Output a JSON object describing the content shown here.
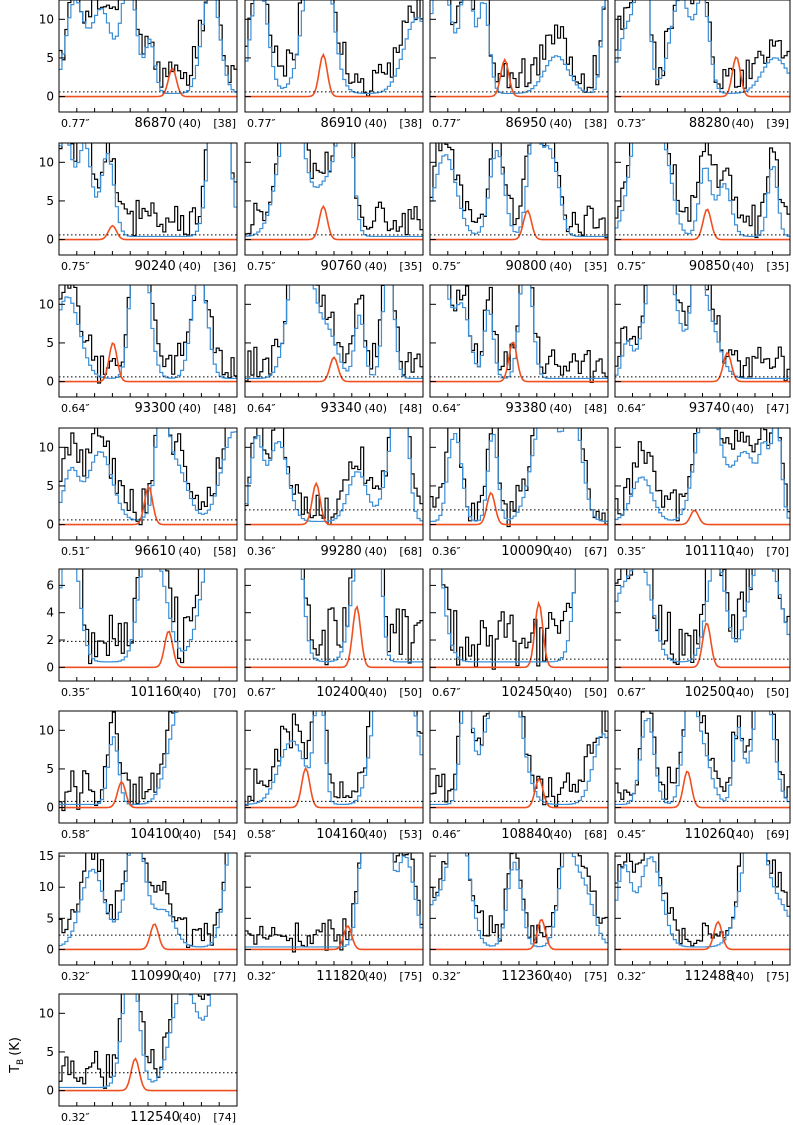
{
  "figure": {
    "ylabel": "T_B (K)",
    "ylabel_main": "T",
    "ylabel_sub": "B",
    "ylabel_unit": "(K)"
  },
  "colors": {
    "observed": "#000000",
    "model_total": "#3a8fd8",
    "model_species": "#f05020",
    "threshold": "#000000"
  },
  "chart_data": {
    "type": "line",
    "description_of_series": [
      "observed spectrum",
      "model (all species)",
      "model (this species)",
      "3-sigma level"
    ],
    "panels": [
      {
        "label": "86870",
        "beam": "0.77″",
        "n": "(40)",
        "idx": "[38]",
        "ylim": [
          -2,
          12.5
        ],
        "yticks": [
          0,
          5,
          10
        ],
        "thr": 0.6
      },
      {
        "label": "86910",
        "beam": "0.77″",
        "n": "(40)",
        "idx": "[38]",
        "ylim": [
          -2,
          12.5
        ],
        "yticks": [
          0,
          5,
          10
        ],
        "thr": 0.6
      },
      {
        "label": "86950",
        "beam": "0.77″",
        "n": "(40)",
        "idx": "[38]",
        "ylim": [
          -2,
          12.5
        ],
        "yticks": [
          0,
          5,
          10
        ],
        "thr": 0.6
      },
      {
        "label": "88280",
        "beam": "0.73″",
        "n": "(40)",
        "idx": "[39]",
        "ylim": [
          -2,
          12.5
        ],
        "yticks": [
          0,
          5,
          10
        ],
        "thr": 0.6
      },
      {
        "label": "90240",
        "beam": "0.75″",
        "n": "(40)",
        "idx": "[36]",
        "ylim": [
          -2,
          12.5
        ],
        "yticks": [
          0,
          5,
          10
        ],
        "thr": 0.6
      },
      {
        "label": "90760",
        "beam": "0.75″",
        "n": "(40)",
        "idx": "[35]",
        "ylim": [
          -2,
          12.5
        ],
        "yticks": [
          0,
          5,
          10
        ],
        "thr": 0.6
      },
      {
        "label": "90800",
        "beam": "0.75″",
        "n": "(40)",
        "idx": "[35]",
        "ylim": [
          -2,
          12.5
        ],
        "yticks": [
          0,
          5,
          10
        ],
        "thr": 0.6
      },
      {
        "label": "90850",
        "beam": "0.75″",
        "n": "(40)",
        "idx": "[35]",
        "ylim": [
          -2,
          12.5
        ],
        "yticks": [
          0,
          5,
          10
        ],
        "thr": 0.6
      },
      {
        "label": "93300",
        "beam": "0.64″",
        "n": "(40)",
        "idx": "[48]",
        "ylim": [
          -2,
          12.5
        ],
        "yticks": [
          0,
          5,
          10
        ],
        "thr": 0.6
      },
      {
        "label": "93340",
        "beam": "0.64″",
        "n": "(40)",
        "idx": "[48]",
        "ylim": [
          -2,
          12.5
        ],
        "yticks": [
          0,
          5,
          10
        ],
        "thr": 0.6
      },
      {
        "label": "93380",
        "beam": "0.64″",
        "n": "(40)",
        "idx": "[48]",
        "ylim": [
          -2,
          12.5
        ],
        "yticks": [
          0,
          5,
          10
        ],
        "thr": 0.6
      },
      {
        "label": "93740",
        "beam": "0.64″",
        "n": "(40)",
        "idx": "[47]",
        "ylim": [
          -2,
          12.5
        ],
        "yticks": [
          0,
          5,
          10
        ],
        "thr": 0.6
      },
      {
        "label": "96610",
        "beam": "0.51″",
        "n": "(40)",
        "idx": "[58]",
        "ylim": [
          -2,
          12.5
        ],
        "yticks": [
          0,
          5,
          10
        ],
        "thr": 0.6
      },
      {
        "label": "99280",
        "beam": "0.36″",
        "n": "(40)",
        "idx": "[68]",
        "ylim": [
          -2,
          12.5
        ],
        "yticks": [
          0,
          5,
          10
        ],
        "thr": 1.9
      },
      {
        "label": "100090",
        "beam": "0.36″",
        "n": "(40)",
        "idx": "[67]",
        "ylim": [
          -2,
          12.5
        ],
        "yticks": [
          0,
          5,
          10
        ],
        "thr": 1.9
      },
      {
        "label": "101110",
        "beam": "0.35″",
        "n": "(40)",
        "idx": "[70]",
        "ylim": [
          -2,
          12.5
        ],
        "yticks": [
          0,
          5,
          10
        ],
        "thr": 1.9
      },
      {
        "label": "101160",
        "beam": "0.35″",
        "n": "(40)",
        "idx": "[70]",
        "ylim": [
          -1,
          7.2
        ],
        "yticks": [
          0,
          2,
          4,
          6
        ],
        "thr": 1.9
      },
      {
        "label": "102400",
        "beam": "0.67″",
        "n": "(40)",
        "idx": "[50]",
        "ylim": [
          -1,
          7.2
        ],
        "yticks": [
          0,
          2,
          4,
          6
        ],
        "thr": 0.6
      },
      {
        "label": "102450",
        "beam": "0.67″",
        "n": "(40)",
        "idx": "[50]",
        "ylim": [
          -1,
          7.2
        ],
        "yticks": [
          0,
          2,
          4,
          6
        ],
        "thr": 0.6
      },
      {
        "label": "102500",
        "beam": "0.67″",
        "n": "(40)",
        "idx": "[50]",
        "ylim": [
          -1,
          7.2
        ],
        "yticks": [
          0,
          2,
          4,
          6
        ],
        "thr": 0.6
      },
      {
        "label": "104100",
        "beam": "0.58″",
        "n": "(40)",
        "idx": "[54]",
        "ylim": [
          -2,
          12.5
        ],
        "yticks": [
          0,
          5,
          10
        ],
        "thr": 0.8
      },
      {
        "label": "104160",
        "beam": "0.58″",
        "n": "(40)",
        "idx": "[53]",
        "ylim": [
          -2,
          12.5
        ],
        "yticks": [
          0,
          5,
          10
        ],
        "thr": 0.8
      },
      {
        "label": "108840",
        "beam": "0.46″",
        "n": "(40)",
        "idx": "[68]",
        "ylim": [
          -2,
          12.5
        ],
        "yticks": [
          0,
          5,
          10
        ],
        "thr": 0.8
      },
      {
        "label": "110260",
        "beam": "0.45″",
        "n": "(40)",
        "idx": "[69]",
        "ylim": [
          -2,
          12.5
        ],
        "yticks": [
          0,
          5,
          10
        ],
        "thr": 0.8
      },
      {
        "label": "110990",
        "beam": "0.32″",
        "n": "(40)",
        "idx": "[77]",
        "ylim": [
          -2.5,
          15.5
        ],
        "yticks": [
          0,
          5,
          10,
          15
        ],
        "thr": 2.3
      },
      {
        "label": "111820",
        "beam": "0.32″",
        "n": "(40)",
        "idx": "[75]",
        "ylim": [
          -2.5,
          15.5
        ],
        "yticks": [
          0,
          5,
          10,
          15
        ],
        "thr": 2.3
      },
      {
        "label": "112360",
        "beam": "0.32″",
        "n": "(40)",
        "idx": "[75]",
        "ylim": [
          -2.5,
          15.5
        ],
        "yticks": [
          0,
          5,
          10,
          15
        ],
        "thr": 2.3
      },
      {
        "label": "112488",
        "beam": "0.32″",
        "n": "(40)",
        "idx": "[75]",
        "ylim": [
          -2.5,
          15.5
        ],
        "yticks": [
          0,
          5,
          10,
          15
        ],
        "thr": 2.3
      },
      {
        "label": "112540",
        "beam": "0.32″",
        "n": "(40)",
        "idx": "[74]",
        "ylim": [
          -2,
          12.5
        ],
        "yticks": [
          0,
          5,
          10
        ],
        "thr": 2.3
      }
    ]
  }
}
